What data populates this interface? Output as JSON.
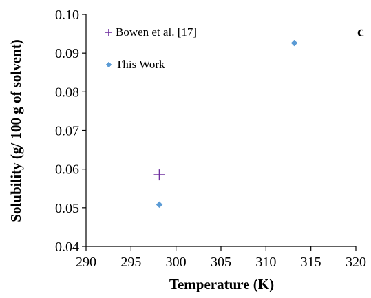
{
  "chart_data": {
    "type": "scatter",
    "title": "",
    "panel_label": "c",
    "xlabel": "Temperature (K)",
    "ylabel": "Solubility (g/ 100 g of solvent)",
    "xlim": [
      290,
      320
    ],
    "ylim": [
      0.04,
      0.1
    ],
    "xticks": [
      "290",
      "295",
      "300",
      "305",
      "310",
      "315",
      "320"
    ],
    "yticks": [
      "0.04",
      "0.05",
      "0.06",
      "0.07",
      "0.08",
      "0.09",
      "0.10"
    ],
    "grid": false,
    "legend_position": "top-left",
    "series": [
      {
        "name": "Bowen et al. [17]",
        "marker": "plus",
        "color": "#7030a0",
        "points": [
          {
            "x": 298.15,
            "y": 0.0585
          }
        ]
      },
      {
        "name": "This Work",
        "marker": "diamond",
        "color": "#5b9bd5",
        "points": [
          {
            "x": 298.15,
            "y": 0.0508
          },
          {
            "x": 313.15,
            "y": 0.0926
          }
        ]
      }
    ]
  }
}
